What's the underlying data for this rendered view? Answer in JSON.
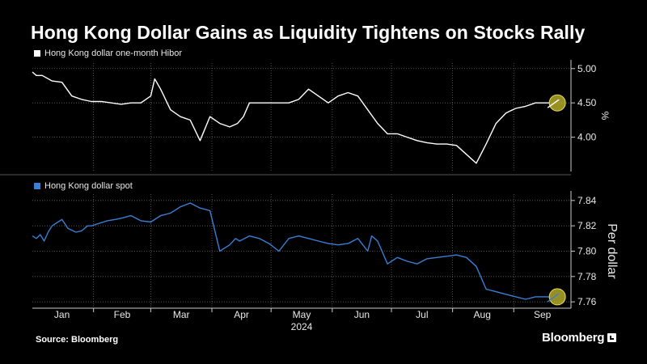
{
  "title": "Hong Kong Dollar Gains as Liquidity Tightens on Stocks Rally",
  "source": "Source: Bloomberg",
  "brand": "Bloomberg",
  "year_label": "2024",
  "chart_data": [
    {
      "type": "line",
      "series": [
        {
          "name": "Hong Kong dollar one-month Hibor",
          "color": "#ffffff",
          "x": [
            0,
            2,
            5,
            10,
            15,
            20,
            25,
            30,
            35,
            40,
            45,
            50,
            55,
            60,
            62,
            65,
            70,
            75,
            80,
            85,
            90,
            95,
            100,
            104,
            107,
            110,
            115,
            120,
            125,
            130,
            135,
            140,
            145,
            150,
            155,
            160,
            165,
            170,
            175,
            180,
            185,
            190,
            195,
            200,
            205,
            210,
            215,
            220,
            225,
            230,
            235,
            240,
            242,
            245,
            250,
            255,
            260,
            262
          ],
          "values": [
            4.95,
            4.9,
            4.9,
            4.82,
            4.8,
            4.6,
            4.55,
            4.52,
            4.52,
            4.5,
            4.48,
            4.5,
            4.5,
            4.6,
            4.85,
            4.7,
            4.4,
            4.3,
            4.25,
            3.95,
            4.3,
            4.2,
            4.15,
            4.2,
            4.3,
            4.5,
            4.5,
            4.5,
            4.5,
            4.5,
            4.55,
            4.7,
            4.6,
            4.5,
            4.6,
            4.65,
            4.6,
            4.4,
            4.2,
            4.05,
            4.05,
            4.0,
            3.95,
            3.92,
            3.9,
            3.9,
            3.88,
            3.75,
            3.62,
            3.9,
            4.2,
            4.35,
            4.38,
            4.42,
            4.45,
            4.5,
            4.5,
            4.5
          ],
          "highlight": 4.5
        }
      ],
      "y_ticks": [
        "5.00",
        "4.50",
        "4.00"
      ],
      "y_tick_values": [
        5.0,
        4.5,
        4.0
      ],
      "ylabel": "%",
      "ylim": [
        3.5,
        5.08
      ],
      "grid": true
    },
    {
      "type": "line",
      "series": [
        {
          "name": "Hong Kong dollar spot",
          "color": "#3a7fd5",
          "x": [
            0,
            2,
            4,
            6,
            8,
            10,
            12,
            15,
            18,
            22,
            25,
            28,
            30,
            34,
            38,
            42,
            45,
            50,
            55,
            60,
            65,
            70,
            75,
            80,
            85,
            90,
            95,
            100,
            103,
            105,
            110,
            115,
            120,
            125,
            130,
            135,
            140,
            145,
            150,
            155,
            160,
            165,
            170,
            172,
            175,
            180,
            185,
            190,
            195,
            200,
            205,
            210,
            215,
            220,
            225,
            230,
            235,
            240,
            245,
            250,
            255,
            260,
            262
          ],
          "values": [
            7.812,
            7.81,
            7.813,
            7.808,
            7.815,
            7.82,
            7.822,
            7.825,
            7.818,
            7.815,
            7.816,
            7.82,
            7.82,
            7.822,
            7.824,
            7.825,
            7.826,
            7.828,
            7.824,
            7.823,
            7.828,
            7.83,
            7.835,
            7.838,
            7.834,
            7.832,
            7.8,
            7.805,
            7.81,
            7.808,
            7.812,
            7.81,
            7.806,
            7.8,
            7.81,
            7.812,
            7.81,
            7.808,
            7.806,
            7.805,
            7.806,
            7.81,
            7.8,
            7.812,
            7.808,
            7.79,
            7.795,
            7.792,
            7.79,
            7.794,
            7.795,
            7.796,
            7.797,
            7.795,
            7.788,
            7.77,
            7.768,
            7.766,
            7.764,
            7.762,
            7.764,
            7.764,
            7.764
          ],
          "highlight": 7.764
        }
      ],
      "y_ticks": [
        "7.84",
        "7.82",
        "7.80",
        "7.78",
        "7.76"
      ],
      "y_tick_values": [
        7.84,
        7.82,
        7.8,
        7.78,
        7.76
      ],
      "ylabel": "Per dollar",
      "ylim": [
        7.755,
        7.845
      ],
      "grid": true
    }
  ],
  "x_axis": {
    "labels": [
      "Jan",
      "Feb",
      "Mar",
      "Apr",
      "May",
      "Jun",
      "Jul",
      "Aug",
      "Sep"
    ],
    "label_positions": [
      15,
      45.5,
      75.5,
      106,
      136.5,
      167,
      197.5,
      228,
      258.5
    ],
    "gridlines": [
      31,
      60,
      91,
      121,
      152,
      182,
      213,
      244
    ],
    "xlim": [
      0,
      273
    ]
  }
}
